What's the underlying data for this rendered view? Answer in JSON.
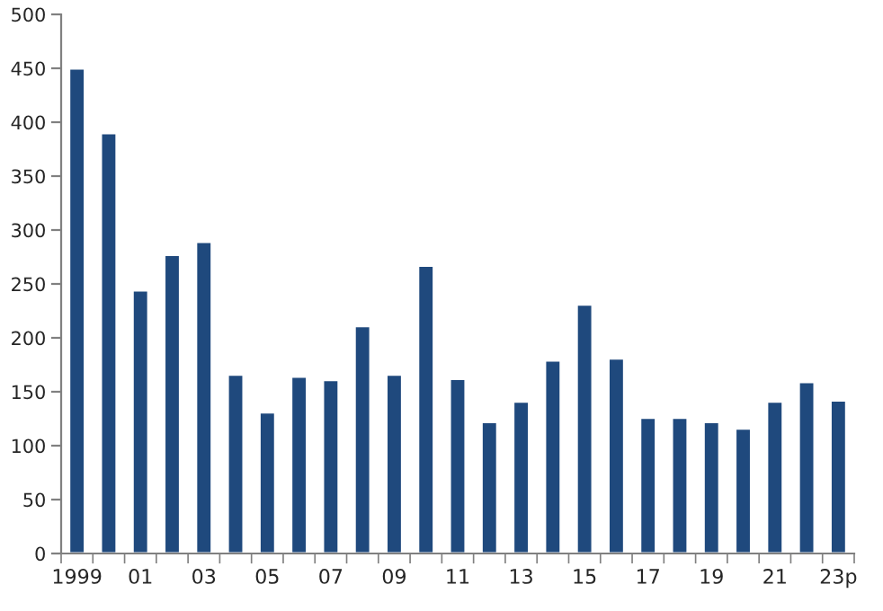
{
  "chart_data": {
    "type": "bar",
    "categories": [
      "1999",
      null,
      "01",
      null,
      "03",
      null,
      "05",
      null,
      "07",
      null,
      "09",
      null,
      "11",
      null,
      "13",
      null,
      "15",
      null,
      "17",
      null,
      "19",
      null,
      "21",
      null,
      "23p"
    ],
    "values": [
      450,
      390,
      244,
      277,
      289,
      166,
      131,
      164,
      161,
      211,
      166,
      267,
      162,
      122,
      141,
      179,
      231,
      181,
      126,
      126,
      122,
      116,
      141,
      159,
      142
    ],
    "color": "#1f497d",
    "ylim": [
      0,
      500
    ],
    "yticks": [
      0,
      50,
      100,
      150,
      200,
      250,
      300,
      350,
      400,
      450,
      500
    ],
    "grid": false,
    "legend": false
  }
}
